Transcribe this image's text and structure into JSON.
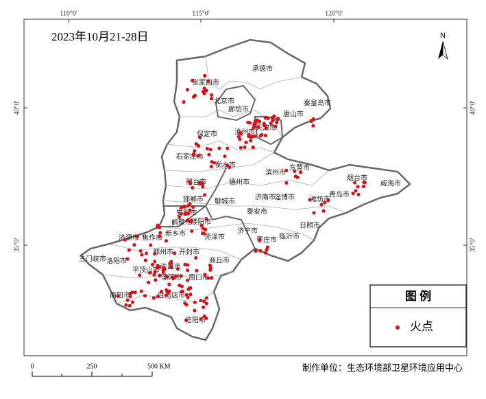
{
  "title": "2023年10月21-28日",
  "north_arrow": "N",
  "graticule": {
    "longitude_labels": [
      "110°0'",
      "115°0'",
      "120°0'"
    ],
    "latitude_labels": [
      "40°0'",
      "35°0'"
    ]
  },
  "cities": [
    "承德市",
    "张家口市",
    "北京市",
    "廊坊市",
    "唐山市",
    "秦皇岛市",
    "天津市",
    "保定市",
    "沧州市",
    "石家庄市",
    "衡水市",
    "邢台市",
    "德州市",
    "滨州市",
    "东营市",
    "烟台市",
    "威海市",
    "邯郸市",
    "聊城市",
    "济南市",
    "淄博市",
    "潍坊市",
    "青岛市",
    "安阳市",
    "濮阳市",
    "鹤壁市",
    "泰安市",
    "日照市",
    "济宁市",
    "新乡市",
    "焦作市",
    "济源市",
    "菏泽市",
    "临沂市",
    "枣庄市",
    "三门峡市",
    "洛阳市",
    "郑州市",
    "开封市",
    "商丘市",
    "平顶山市",
    "许昌市",
    "漯河市",
    "周口市",
    "南阳市",
    "驻马店市",
    "信阳市"
  ],
  "legend": {
    "title": "图 例",
    "items": [
      "火点"
    ]
  },
  "scale_bar": {
    "labels": [
      "0",
      "250",
      "500 KM"
    ]
  },
  "credit": "制作单位：生态环境部卫星环境应用中心"
}
